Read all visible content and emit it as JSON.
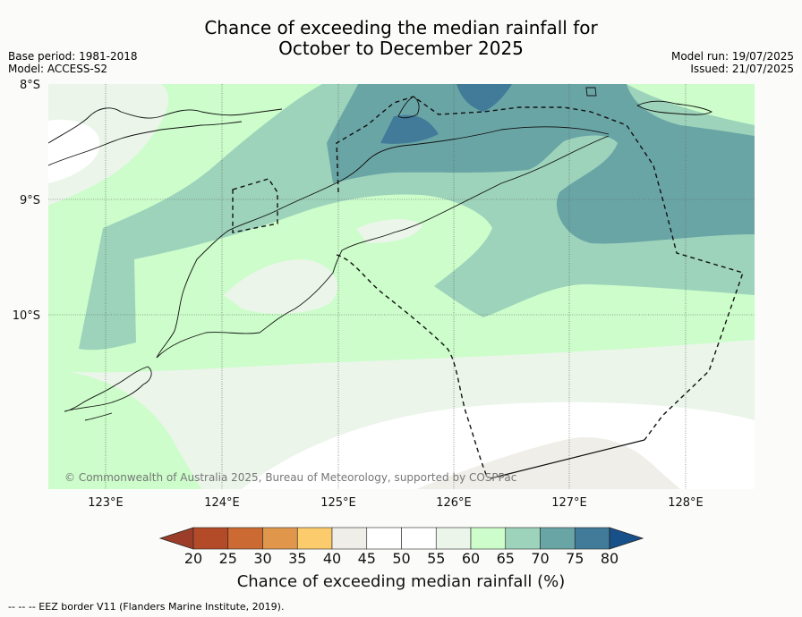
{
  "title": {
    "line1": "Chance of exceeding the median rainfall for",
    "line2": "October to December 2025"
  },
  "meta_left": {
    "base_period": "Base period: 1981-2018",
    "model": "Model: ACCESS-S2"
  },
  "meta_right": {
    "model_run": "Model run: 19/07/2025",
    "issued": "Issued: 21/07/2025"
  },
  "map": {
    "lat_labels": [
      "8°S",
      "9°S",
      "10°S"
    ],
    "lon_labels": [
      "123°E",
      "124°E",
      "125°E",
      "126°E",
      "127°E",
      "128°E"
    ],
    "copyright": "© Commonwealth of Australia 2025, Bureau of Meteorology, supported by COSPPac"
  },
  "colorbar": {
    "ticks": [
      "20",
      "25",
      "30",
      "35",
      "40",
      "45",
      "50",
      "55",
      "60",
      "65",
      "70",
      "75",
      "80"
    ],
    "colors": [
      "#b34a28",
      "#cc6a34",
      "#e0974c",
      "#fccb6b",
      "#f0eee8",
      "#ffffff",
      "#ffffff",
      "#ebf5ea",
      "#ccfdca",
      "#9dd3bb",
      "#6aa5a6",
      "#427b99"
    ],
    "under_color": "#9c3d2a",
    "over_color": "#18508a",
    "label": "Chance of exceeding median rainfall (%)"
  },
  "footnote": "--  --  -- EEZ border V11 (Flanders Marine Institute, 2019)."
}
